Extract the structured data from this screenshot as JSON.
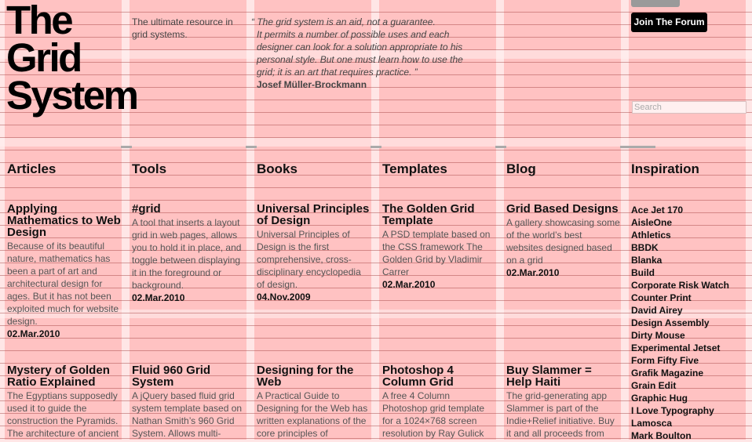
{
  "site": {
    "logo_lines": [
      "The",
      "Grid",
      "System"
    ],
    "tagline": "The ultimate resource in grid systems."
  },
  "quote": {
    "lines": [
      "“ The grid system is an aid, not a guarantee.",
      "It permits a number of possible uses and each",
      "designer can look for a solution appropriate to his",
      "personal style. But one must learn how to use the",
      "grid; it is an art that requires practice. ”"
    ],
    "author": "Josef Müller-Brockmann"
  },
  "header": {
    "forum_button": "Join The Forum",
    "search_placeholder": "Search"
  },
  "nav": [
    "Articles",
    "Tools",
    "Books",
    "Templates",
    "Blog",
    "Inspiration"
  ],
  "columns": [
    {
      "items": [
        {
          "title": "Applying Mathematics to Web Design",
          "desc": "Because of its beautiful nature, mathematics has been a part of art and architectural design for ages. But it has not been exploited much for website design.",
          "date": "02.Mar.2010"
        },
        {
          "title": "Mystery of Golden Ratio Explained",
          "desc": "The Egyptians supposedly used it to guide the construction the Pyramids. The architecture of ancient",
          "date": ""
        }
      ]
    },
    {
      "items": [
        {
          "title": "#grid",
          "desc": "A tool that inserts a layout grid in web pages, allows you to hold it in place, and toggle between displaying it in the foreground or background.",
          "date": "02.Mar.2010"
        },
        {
          "title": "Fluid 960 Grid System",
          "desc": "A jQuery based fluid grid system template based on Nathan Smith’s 960 Grid System. Allows multi-",
          "date": ""
        }
      ]
    },
    {
      "items": [
        {
          "title": "Universal Principles of Design",
          "desc": "Universal Principles of Design is the first comprehensive, cross-disciplinary encyclopedia of design.",
          "date": "04.Nov.2009"
        },
        {
          "title": "Designing for the Web",
          "desc": "A Practical Guide to Designing for the Web has written explanations of the core principles of",
          "date": ""
        }
      ]
    },
    {
      "items": [
        {
          "title": "The Golden Grid Template",
          "desc": "A PSD template based on the CSS framework The Golden Grid by Vladimir Carrer",
          "date": "02.Mar.2010"
        },
        {
          "title": "Photoshop 4 Column Grid",
          "desc": "A free 4 Column Photoshop grid template for a 1024×768 screen resolution by Ray Gulick",
          "date": ""
        }
      ]
    },
    {
      "items": [
        {
          "title": "Grid Based Designs",
          "desc": "A gallery showcasing some of the world’s best websites designed based on a grid",
          "date": "02.Mar.2010"
        },
        {
          "title": "Buy Slammer = Help Haiti",
          "desc": "The grid-generating app Slammer is part of the Indie+Relief initiative. Buy it and all proceeds from",
          "date": ""
        }
      ]
    }
  ],
  "inspiration": [
    "Ace Jet 170",
    "AisleOne",
    "Athletics",
    "BBDK",
    "Blanka",
    "Build",
    "Corporate Risk Watch",
    "Counter Print",
    "David Airey",
    "Design Assembly",
    "Dirty Mouse",
    "Experimental Jetset",
    "Form Fifty Five",
    "Grafik Magazine",
    "Grain Edit",
    "Graphic Hug",
    "I Love Typography",
    "Lamosca",
    "Mark Boulton"
  ]
}
